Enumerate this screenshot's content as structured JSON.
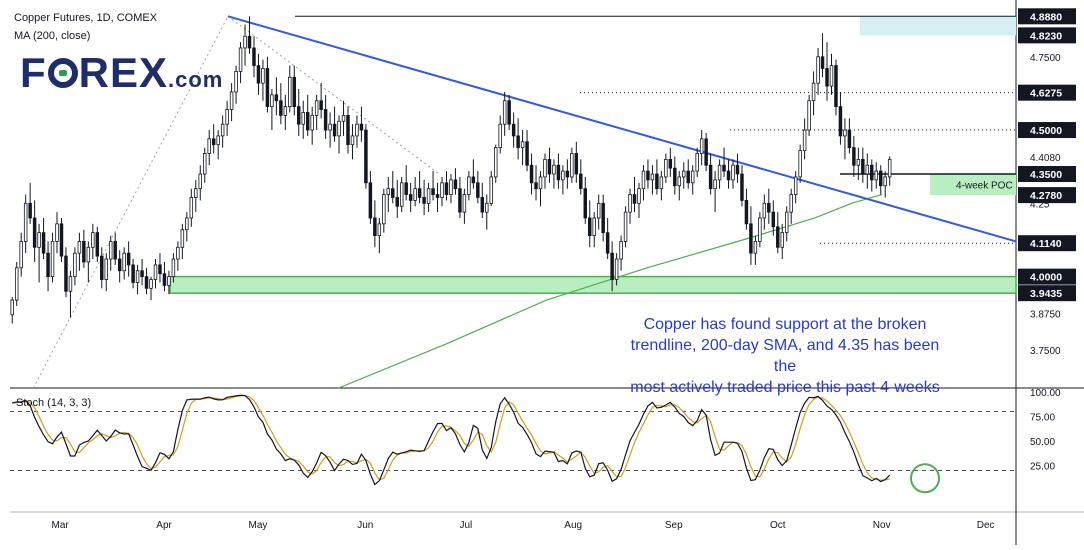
{
  "header": {
    "title": "Copper Futures, 1D, COMEX",
    "ma_label": "MA (200, close)"
  },
  "logo": {
    "main_pre": "F",
    "main_post": "REX",
    "suffix": ".com"
  },
  "annotation": {
    "lines": [
      "Copper has found support at the broken",
      "trendline, 200-day SMA, and 4.35 has been the",
      "most actively traded price this past 4-weeks"
    ]
  },
  "colors": {
    "up": "#131722",
    "down": "#131722",
    "trendline": "#2f5be6",
    "sma": "#4caf50",
    "support_zone": "#b9efc0",
    "support_border": "#4caf50",
    "stoch_k": "#131722",
    "stoch_d": "#d99a1f",
    "label_bg": "#131722",
    "annotation": "#2a39d6",
    "circle": "#4caf50"
  },
  "chart_data": {
    "type": "candlestick",
    "title": "Copper Futures, 1D, COMEX",
    "price_axis": {
      "ticks": [
        4.75,
        4.408,
        4.25,
        3.875,
        3.75
      ],
      "tick_labels": [
        "4.7500",
        "4.4080",
        "4.25",
        "3.8750",
        "3.7500"
      ],
      "range": [
        3.62,
        4.93
      ]
    },
    "price_labels": [
      {
        "value": 4.888,
        "text": "4.8880"
      },
      {
        "value": 4.823,
        "text": "4.8230"
      },
      {
        "value": 4.6275,
        "text": "4.6275"
      },
      {
        "value": 4.5,
        "text": "4.5000"
      },
      {
        "value": 4.35,
        "text": "4.3500"
      },
      {
        "value": 4.278,
        "text": "4.2780"
      },
      {
        "value": 4.114,
        "text": "4.1140"
      },
      {
        "value": 4.0,
        "text": "4.0000"
      },
      {
        "value": 3.9435,
        "text": "3.9435"
      }
    ],
    "x_axis": {
      "months": [
        "Mar",
        "Apr",
        "May",
        "Jun",
        "Jul",
        "Aug",
        "Sep",
        "Oct",
        "Nov",
        "Dec"
      ],
      "month_day_index": [
        6,
        37,
        65,
        97,
        127,
        159,
        189,
        220,
        251,
        282
      ]
    },
    "poc_label": "4-week POC",
    "support_zone": [
      3.9435,
      4.0
    ],
    "resistance_zone": [
      4.823,
      4.888
    ],
    "trendline": {
      "from": [
        1.0,
        3.62
      ],
      "to": [
        65,
        4.888
      ],
      "label": "dotted"
    },
    "main_trendline": {
      "from": [
        65,
        4.888
      ],
      "to": [
        300,
        4.12
      ]
    },
    "sma200": [
      [
        98,
        3.62
      ],
      [
        130,
        3.77
      ],
      [
        160,
        3.92
      ],
      [
        190,
        4.03
      ],
      [
        220,
        4.13
      ],
      [
        240,
        4.2
      ],
      [
        251,
        4.25
      ],
      [
        260,
        4.28
      ]
    ],
    "candles_ohlc": [
      [
        3.87,
        3.93,
        3.84,
        3.92
      ],
      [
        3.92,
        4.05,
        3.9,
        4.03
      ],
      [
        4.03,
        4.15,
        4.0,
        4.12
      ],
      [
        4.12,
        4.28,
        4.08,
        4.25
      ],
      [
        4.25,
        4.32,
        4.18,
        4.2
      ],
      [
        4.2,
        4.26,
        4.05,
        4.1
      ],
      [
        4.1,
        4.18,
        3.98,
        4.15
      ],
      [
        4.15,
        4.2,
        4.06,
        4.08
      ],
      [
        4.08,
        4.12,
        3.95,
        4.0
      ],
      [
        4.0,
        4.15,
        3.98,
        4.12
      ],
      [
        4.12,
        4.22,
        4.08,
        4.18
      ],
      [
        4.18,
        4.2,
        4.05,
        4.07
      ],
      [
        4.07,
        4.1,
        3.93,
        3.95
      ],
      [
        3.95,
        4.02,
        3.86,
        4.0
      ],
      [
        4.0,
        4.1,
        3.97,
        4.08
      ],
      [
        4.08,
        4.15,
        4.02,
        4.12
      ],
      [
        4.12,
        4.16,
        4.03,
        4.05
      ],
      [
        4.05,
        4.12,
        3.98,
        4.1
      ],
      [
        4.1,
        4.18,
        4.06,
        4.15
      ],
      [
        4.15,
        4.17,
        4.05,
        4.07
      ],
      [
        4.07,
        4.1,
        3.96,
        3.99
      ],
      [
        3.99,
        4.08,
        3.95,
        4.06
      ],
      [
        4.06,
        4.14,
        4.02,
        4.12
      ],
      [
        4.12,
        4.15,
        4.04,
        4.06
      ],
      [
        4.06,
        4.09,
        3.98,
        4.02
      ],
      [
        4.02,
        4.1,
        3.99,
        4.08
      ],
      [
        4.08,
        4.12,
        4.0,
        4.04
      ],
      [
        4.04,
        4.06,
        3.96,
        3.98
      ],
      [
        3.98,
        4.04,
        3.94,
        4.02
      ],
      [
        4.02,
        4.06,
        3.97,
        4.0
      ],
      [
        4.0,
        4.03,
        3.94,
        3.96
      ],
      [
        3.96,
        4.0,
        3.92,
        3.99
      ],
      [
        3.99,
        4.06,
        3.96,
        4.04
      ],
      [
        4.04,
        4.08,
        3.98,
        4.01
      ],
      [
        4.01,
        4.05,
        3.95,
        3.97
      ],
      [
        3.97,
        4.02,
        3.94,
        4.0
      ],
      [
        4.0,
        4.08,
        3.98,
        4.06
      ],
      [
        4.06,
        4.12,
        4.02,
        4.1
      ],
      [
        4.1,
        4.18,
        4.06,
        4.16
      ],
      [
        4.16,
        4.22,
        4.12,
        4.2
      ],
      [
        4.2,
        4.3,
        4.17,
        4.27
      ],
      [
        4.27,
        4.33,
        4.22,
        4.3
      ],
      [
        4.3,
        4.38,
        4.26,
        4.35
      ],
      [
        4.35,
        4.44,
        4.32,
        4.42
      ],
      [
        4.42,
        4.5,
        4.38,
        4.47
      ],
      [
        4.47,
        4.52,
        4.42,
        4.45
      ],
      [
        4.45,
        4.5,
        4.4,
        4.48
      ],
      [
        4.48,
        4.55,
        4.44,
        4.52
      ],
      [
        4.52,
        4.6,
        4.48,
        4.57
      ],
      [
        4.57,
        4.66,
        4.53,
        4.63
      ],
      [
        4.63,
        4.72,
        4.59,
        4.7
      ],
      [
        4.7,
        4.8,
        4.66,
        4.78
      ],
      [
        4.78,
        4.86,
        4.72,
        4.82
      ],
      [
        4.82,
        4.888,
        4.76,
        4.78
      ],
      [
        4.78,
        4.82,
        4.68,
        4.72
      ],
      [
        4.72,
        4.76,
        4.62,
        4.66
      ],
      [
        4.66,
        4.74,
        4.6,
        4.71
      ],
      [
        4.71,
        4.75,
        4.56,
        4.58
      ],
      [
        4.58,
        4.64,
        4.5,
        4.62
      ],
      [
        4.62,
        4.68,
        4.55,
        4.6
      ],
      [
        4.6,
        4.66,
        4.52,
        4.55
      ],
      [
        4.55,
        4.62,
        4.5,
        4.58
      ],
      [
        4.58,
        4.72,
        4.56,
        4.68
      ],
      [
        4.68,
        4.72,
        4.55,
        4.58
      ],
      [
        4.58,
        4.64,
        4.48,
        4.52
      ],
      [
        4.52,
        4.6,
        4.47,
        4.56
      ],
      [
        4.56,
        4.62,
        4.48,
        4.5
      ],
      [
        4.5,
        4.58,
        4.45,
        4.55
      ],
      [
        4.55,
        4.62,
        4.5,
        4.6
      ],
      [
        4.6,
        4.66,
        4.54,
        4.57
      ],
      [
        4.57,
        4.62,
        4.47,
        4.5
      ],
      [
        4.5,
        4.56,
        4.44,
        4.52
      ],
      [
        4.52,
        4.58,
        4.46,
        4.48
      ],
      [
        4.48,
        4.55,
        4.42,
        4.53
      ],
      [
        4.53,
        4.6,
        4.48,
        4.55
      ],
      [
        4.55,
        4.58,
        4.42,
        4.45
      ],
      [
        4.45,
        4.52,
        4.4,
        4.48
      ],
      [
        4.48,
        4.55,
        4.44,
        4.52
      ],
      [
        4.52,
        4.58,
        4.46,
        4.5
      ],
      [
        4.5,
        4.52,
        4.3,
        4.32
      ],
      [
        4.32,
        4.36,
        4.18,
        4.2
      ],
      [
        4.2,
        4.26,
        4.1,
        4.14
      ],
      [
        4.14,
        4.2,
        4.08,
        4.18
      ],
      [
        4.18,
        4.3,
        4.15,
        4.28
      ],
      [
        4.28,
        4.34,
        4.22,
        4.3
      ],
      [
        4.3,
        4.36,
        4.25,
        4.27
      ],
      [
        4.27,
        4.33,
        4.2,
        4.24
      ],
      [
        4.24,
        4.34,
        4.22,
        4.32
      ],
      [
        4.32,
        4.38,
        4.26,
        4.28
      ],
      [
        4.28,
        4.32,
        4.22,
        4.26
      ],
      [
        4.26,
        4.34,
        4.24,
        4.3
      ],
      [
        4.3,
        4.36,
        4.25,
        4.27
      ],
      [
        4.27,
        4.33,
        4.21,
        4.25
      ],
      [
        4.25,
        4.32,
        4.22,
        4.3
      ],
      [
        4.3,
        4.36,
        4.26,
        4.28
      ],
      [
        4.28,
        4.32,
        4.22,
        4.27
      ],
      [
        4.27,
        4.34,
        4.24,
        4.32
      ],
      [
        4.32,
        4.36,
        4.26,
        4.28
      ],
      [
        4.28,
        4.35,
        4.25,
        4.33
      ],
      [
        4.33,
        4.37,
        4.28,
        4.3
      ],
      [
        4.3,
        4.34,
        4.2,
        4.22
      ],
      [
        4.22,
        4.3,
        4.18,
        4.28
      ],
      [
        4.28,
        4.36,
        4.26,
        4.34
      ],
      [
        4.34,
        4.4,
        4.3,
        4.32
      ],
      [
        4.32,
        4.36,
        4.25,
        4.27
      ],
      [
        4.27,
        4.32,
        4.2,
        4.22
      ],
      [
        4.22,
        4.28,
        4.16,
        4.25
      ],
      [
        4.25,
        4.36,
        4.24,
        4.34
      ],
      [
        4.34,
        4.45,
        4.32,
        4.44
      ],
      [
        4.44,
        4.55,
        4.42,
        4.52
      ],
      [
        4.52,
        4.63,
        4.48,
        4.6
      ],
      [
        4.6,
        4.62,
        4.5,
        4.52
      ],
      [
        4.52,
        4.56,
        4.44,
        4.48
      ],
      [
        4.48,
        4.54,
        4.4,
        4.44
      ],
      [
        4.44,
        4.5,
        4.38,
        4.46
      ],
      [
        4.46,
        4.5,
        4.36,
        4.38
      ],
      [
        4.38,
        4.42,
        4.28,
        4.32
      ],
      [
        4.32,
        4.38,
        4.26,
        4.3
      ],
      [
        4.3,
        4.36,
        4.24,
        4.34
      ],
      [
        4.34,
        4.42,
        4.3,
        4.4
      ],
      [
        4.4,
        4.44,
        4.32,
        4.35
      ],
      [
        4.35,
        4.4,
        4.3,
        4.38
      ],
      [
        4.38,
        4.42,
        4.3,
        4.33
      ],
      [
        4.33,
        4.38,
        4.28,
        4.36
      ],
      [
        4.36,
        4.4,
        4.3,
        4.34
      ],
      [
        4.34,
        4.44,
        4.32,
        4.42
      ],
      [
        4.42,
        4.46,
        4.32,
        4.35
      ],
      [
        4.35,
        4.4,
        4.28,
        4.3
      ],
      [
        4.3,
        4.34,
        4.18,
        4.2
      ],
      [
        4.2,
        4.26,
        4.1,
        4.14
      ],
      [
        4.14,
        4.22,
        4.1,
        4.2
      ],
      [
        4.2,
        4.28,
        4.16,
        4.25
      ],
      [
        4.25,
        4.28,
        4.12,
        4.15
      ],
      [
        4.15,
        4.2,
        4.06,
        4.08
      ],
      [
        4.08,
        4.12,
        3.95,
        3.99
      ],
      [
        3.99,
        4.08,
        3.97,
        4.06
      ],
      [
        4.06,
        4.14,
        4.02,
        4.12
      ],
      [
        4.12,
        4.24,
        4.1,
        4.22
      ],
      [
        4.22,
        4.3,
        4.18,
        4.28
      ],
      [
        4.28,
        4.34,
        4.22,
        4.25
      ],
      [
        4.25,
        4.32,
        4.2,
        4.3
      ],
      [
        4.3,
        4.38,
        4.26,
        4.36
      ],
      [
        4.36,
        4.4,
        4.3,
        4.33
      ],
      [
        4.33,
        4.38,
        4.28,
        4.35
      ],
      [
        4.35,
        4.4,
        4.28,
        4.3
      ],
      [
        4.3,
        4.36,
        4.26,
        4.34
      ],
      [
        4.34,
        4.42,
        4.32,
        4.4
      ],
      [
        4.4,
        4.44,
        4.34,
        4.37
      ],
      [
        4.37,
        4.41,
        4.28,
        4.31
      ],
      [
        4.31,
        4.36,
        4.26,
        4.34
      ],
      [
        4.34,
        4.39,
        4.3,
        4.36
      ],
      [
        4.36,
        4.4,
        4.3,
        4.32
      ],
      [
        4.32,
        4.38,
        4.28,
        4.36
      ],
      [
        4.36,
        4.44,
        4.34,
        4.42
      ],
      [
        4.42,
        4.5,
        4.38,
        4.47
      ],
      [
        4.47,
        4.49,
        4.36,
        4.38
      ],
      [
        4.38,
        4.42,
        4.28,
        4.3
      ],
      [
        4.3,
        4.36,
        4.22,
        4.33
      ],
      [
        4.33,
        4.4,
        4.3,
        4.38
      ],
      [
        4.38,
        4.44,
        4.34,
        4.36
      ],
      [
        4.36,
        4.4,
        4.3,
        4.33
      ],
      [
        4.33,
        4.4,
        4.3,
        4.38
      ],
      [
        4.38,
        4.42,
        4.32,
        4.35
      ],
      [
        4.35,
        4.38,
        4.24,
        4.26
      ],
      [
        4.26,
        4.3,
        4.16,
        4.18
      ],
      [
        4.18,
        4.24,
        4.04,
        4.08
      ],
      [
        4.08,
        4.14,
        4.04,
        4.12
      ],
      [
        4.12,
        4.22,
        4.1,
        4.2
      ],
      [
        4.2,
        4.28,
        4.16,
        4.25
      ],
      [
        4.25,
        4.3,
        4.18,
        4.22
      ],
      [
        4.22,
        4.26,
        4.14,
        4.17
      ],
      [
        4.17,
        4.22,
        4.08,
        4.1
      ],
      [
        4.1,
        4.18,
        4.06,
        4.15
      ],
      [
        4.15,
        4.24,
        4.12,
        4.22
      ],
      [
        4.22,
        4.3,
        4.18,
        4.28
      ],
      [
        4.28,
        4.36,
        4.25,
        4.34
      ],
      [
        4.34,
        4.45,
        4.32,
        4.43
      ],
      [
        4.43,
        4.54,
        4.4,
        4.5
      ],
      [
        4.5,
        4.62,
        4.48,
        4.6
      ],
      [
        4.6,
        4.7,
        4.55,
        4.66
      ],
      [
        4.66,
        4.78,
        4.62,
        4.75
      ],
      [
        4.75,
        4.83,
        4.68,
        4.71
      ],
      [
        4.71,
        4.8,
        4.6,
        4.65
      ],
      [
        4.65,
        4.76,
        4.62,
        4.72
      ],
      [
        4.72,
        4.74,
        4.55,
        4.58
      ],
      [
        4.58,
        4.63,
        4.45,
        4.48
      ],
      [
        4.48,
        4.54,
        4.4,
        4.5
      ],
      [
        4.5,
        4.54,
        4.42,
        4.44
      ],
      [
        4.44,
        4.48,
        4.34,
        4.38
      ],
      [
        4.38,
        4.44,
        4.33,
        4.4
      ],
      [
        4.4,
        4.44,
        4.32,
        4.35
      ],
      [
        4.35,
        4.42,
        4.3,
        4.38
      ],
      [
        4.38,
        4.4,
        4.29,
        4.33
      ],
      [
        4.33,
        4.39,
        4.3,
        4.36
      ],
      [
        4.36,
        4.38,
        4.28,
        4.31
      ],
      [
        4.31,
        4.36,
        4.27,
        4.34
      ],
      [
        4.34,
        4.41,
        4.31,
        4.4
      ]
    ],
    "stochastic": {
      "label": "Stoch (14, 3, 3)",
      "ticks": [
        100,
        75,
        50,
        25
      ],
      "tick_labels": [
        "100.00",
        "75.00",
        "50.00",
        "25.00"
      ],
      "overbought": 80,
      "oversold": 20
    }
  }
}
